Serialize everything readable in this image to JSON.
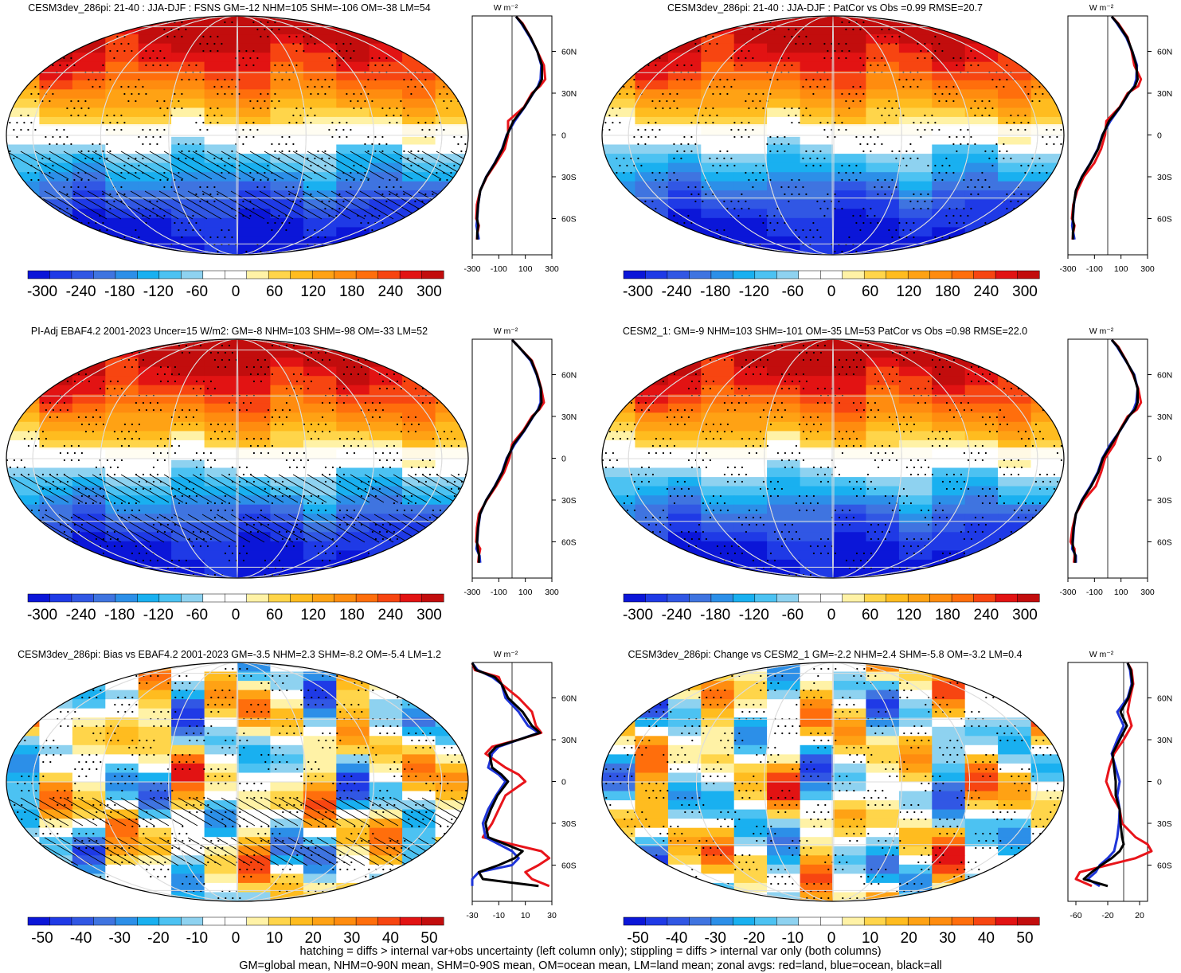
{
  "footer": {
    "line1": "hatching = diffs > internal var+obs uncertainty (left column only); stippling = diffs > internal var only (both columns)",
    "line2": "GM=global mean, NHM=0-90N mean, SHM=0-90S mean, OM=ocean mean, LM=land mean; zonal avgs: red=land, blue=ocean, black=all"
  },
  "units_label": "W m⁻²",
  "lat_ticks": [
    "60N",
    "30N",
    "0",
    "30S",
    "60S"
  ],
  "palette": [
    "#0b16d8",
    "#1f3ae6",
    "#3157e4",
    "#3f74e0",
    "#2c8fe8",
    "#19b0f0",
    "#4cc2f2",
    "#8ed2f0",
    "#ffffff",
    "#ffffff",
    "#fff2a6",
    "#ffd54a",
    "#ffbc1f",
    "#ffa214",
    "#ff8c0f",
    "#ff6e0c",
    "#f74511",
    "#e21313",
    "#c20d0d"
  ],
  "colors": {
    "land": "#e8141a",
    "ocean": "#1e34d8",
    "all": "#000000",
    "missing": "#c8c8c8"
  },
  "chart_data": [
    {
      "type": "heatmap",
      "title": "CESM3dev_286pi: 21-40 : JJA-DJF : FSNS GM=-12 NHM=105 SHM=-106 OM=-38 LM=54",
      "colorbar_labels": [
        "-300",
        "-240",
        "-180",
        "-120",
        "-60",
        "0",
        "60",
        "120",
        "180",
        "240",
        "300"
      ],
      "colorbar_range": [
        -330,
        330
      ],
      "hatching": true,
      "stippling": true,
      "zonal": {
        "xlim": [
          -300,
          300
        ],
        "xticks": [
          "-300",
          "-100",
          "100",
          "300"
        ],
        "xtick_values": [
          -300,
          -100,
          100,
          300
        ],
        "lat": [
          85,
          80,
          70,
          60,
          50,
          40,
          35,
          30,
          20,
          10,
          0,
          -10,
          -20,
          -30,
          -40,
          -50,
          -60,
          -65,
          -70,
          -75
        ],
        "land": [
          30,
          80,
          140,
          190,
          240,
          250,
          210,
          150,
          90,
          -30,
          -30,
          -55,
          -120,
          -190,
          -240,
          -265,
          -270,
          -250,
          -260,
          -265
        ],
        "ocean": [
          30,
          70,
          135,
          190,
          220,
          215,
          195,
          160,
          95,
          20,
          -40,
          -75,
          -130,
          -195,
          -240,
          -255,
          -262,
          -268,
          -260,
          -250
        ],
        "all": [
          30,
          75,
          140,
          190,
          225,
          225,
          200,
          158,
          93,
          10,
          -38,
          -72,
          -128,
          -194,
          -240,
          -256,
          -264,
          -255,
          -262,
          -262
        ]
      }
    },
    {
      "type": "heatmap",
      "title": "CESM3dev_286pi: 21-40 : JJA-DJF : PatCor vs Obs =0.99 RMSE=20.7",
      "colorbar_labels": [
        "-300",
        "-240",
        "-180",
        "-120",
        "-60",
        "0",
        "60",
        "120",
        "180",
        "240",
        "300"
      ],
      "colorbar_range": [
        -330,
        330
      ],
      "hatching": false,
      "stippling": true,
      "zonal": {
        "xlim": [
          -300,
          300
        ],
        "xticks": [
          "-300",
          "-100",
          "100",
          "300"
        ],
        "xtick_values": [
          -300,
          -100,
          100,
          300
        ],
        "lat": [
          85,
          80,
          70,
          60,
          50,
          40,
          35,
          30,
          20,
          10,
          0,
          -10,
          -20,
          -30,
          -40,
          -50,
          -60,
          -65,
          -70,
          -75
        ],
        "land": [
          30,
          80,
          150,
          180,
          200,
          250,
          230,
          150,
          90,
          -10,
          -20,
          -50,
          -100,
          -180,
          -230,
          -260,
          -270,
          -250,
          -260,
          -265
        ],
        "ocean": [
          30,
          70,
          140,
          185,
          220,
          215,
          200,
          160,
          95,
          20,
          -40,
          -75,
          -130,
          -195,
          -240,
          -255,
          -262,
          -268,
          -260,
          -250
        ],
        "all": [
          30,
          75,
          145,
          185,
          215,
          225,
          205,
          158,
          93,
          10,
          -38,
          -72,
          -128,
          -194,
          -240,
          -256,
          -264,
          -255,
          -262,
          -262
        ]
      }
    },
    {
      "type": "heatmap",
      "title": "PI-Adj EBAF4.2 2001-2023 Uncer=15 W/m2: GM=-8 NHM=103 SHM=-98 OM=-33 LM=52",
      "colorbar_labels": [
        "-300",
        "-240",
        "-180",
        "-120",
        "-60",
        "0",
        "60",
        "120",
        "180",
        "240",
        "300"
      ],
      "colorbar_range": [
        -330,
        330
      ],
      "hatching": true,
      "stippling": true,
      "zonal": {
        "xlim": [
          -300,
          300
        ],
        "xticks": [
          "-300",
          "-100",
          "100",
          "300"
        ],
        "xtick_values": [
          -300,
          -100,
          100,
          300
        ],
        "lat": [
          85,
          80,
          70,
          60,
          50,
          40,
          35,
          30,
          20,
          10,
          0,
          -10,
          -20,
          -30,
          -40,
          -50,
          -60,
          -65,
          -70,
          -75
        ],
        "land": [
          0,
          50,
          150,
          190,
          220,
          240,
          205,
          150,
          85,
          0,
          -20,
          -60,
          -120,
          -190,
          -250,
          -265,
          -270,
          -240,
          -250,
          -255
        ],
        "ocean": [
          0,
          50,
          140,
          185,
          215,
          215,
          195,
          160,
          95,
          20,
          -40,
          -75,
          -130,
          -195,
          -240,
          -255,
          -262,
          -268,
          -245,
          -240
        ],
        "all": [
          0,
          50,
          145,
          187,
          217,
          222,
          200,
          158,
          92,
          12,
          -36,
          -72,
          -128,
          -194,
          -242,
          -257,
          -264,
          -258,
          -248,
          -250
        ]
      }
    },
    {
      "type": "heatmap",
      "title": "CESM2_1: GM=-9 NHM=103 SHM=-101 OM=-35 LM=53 PatCor vs Obs =0.98 RMSE=22.0",
      "colorbar_labels": [
        "-300",
        "-240",
        "-180",
        "-120",
        "-60",
        "0",
        "60",
        "120",
        "180",
        "240",
        "300"
      ],
      "colorbar_range": [
        -330,
        330
      ],
      "hatching": false,
      "stippling": true,
      "zonal": {
        "xlim": [
          -300,
          300
        ],
        "xticks": [
          "-300",
          "-100",
          "100",
          "300"
        ],
        "xtick_values": [
          -300,
          -100,
          100,
          300
        ],
        "lat": [
          85,
          80,
          70,
          60,
          50,
          40,
          35,
          30,
          20,
          10,
          0,
          -10,
          -20,
          -30,
          -40,
          -50,
          -60,
          -65,
          -70,
          -75
        ],
        "land": [
          30,
          80,
          140,
          190,
          230,
          250,
          220,
          150,
          90,
          50,
          -20,
          -50,
          -90,
          -180,
          -240,
          -265,
          -280,
          -250,
          -250,
          -255
        ],
        "ocean": [
          30,
          70,
          135,
          200,
          225,
          215,
          195,
          160,
          95,
          20,
          -40,
          -75,
          -130,
          -195,
          -240,
          -255,
          -262,
          -268,
          -240,
          -240
        ],
        "all": [
          30,
          75,
          138,
          195,
          225,
          225,
          205,
          158,
          93,
          28,
          -36,
          -70,
          -125,
          -192,
          -240,
          -257,
          -265,
          -260,
          -244,
          -246
        ]
      }
    },
    {
      "type": "heatmap",
      "title": "CESM3dev_286pi: Bias vs EBAF4.2 2001-2023 GM=-3.5 NHM=2.3 SHM=-8.2 OM=-5.4 LM=1.2",
      "colorbar_labels": [
        "-50",
        "-40",
        "-30",
        "-20",
        "-10",
        "0",
        "10",
        "20",
        "30",
        "40",
        "50"
      ],
      "colorbar_range": [
        -55,
        55
      ],
      "hatching": true,
      "stippling": true,
      "zonal": {
        "xlim": [
          -30,
          30
        ],
        "xticks": [
          "-30",
          "-10",
          "10",
          "30"
        ],
        "xtick_values": [
          -30,
          -10,
          10,
          30
        ],
        "lat": [
          85,
          80,
          75,
          70,
          60,
          50,
          40,
          35,
          30,
          25,
          20,
          10,
          5,
          0,
          -10,
          -20,
          -30,
          -40,
          -45,
          -50,
          -55,
          -60,
          -65,
          -70,
          -75
        ],
        "land": [
          -30,
          -28,
          -10,
          -8,
          5,
          15,
          18,
          22,
          5,
          -15,
          -20,
          -5,
          5,
          10,
          -5,
          -10,
          -15,
          -22,
          0,
          22,
          28,
          20,
          10,
          15,
          28
        ],
        "ocean": [
          -30,
          -26,
          -15,
          -8,
          -5,
          5,
          12,
          20,
          5,
          -10,
          -15,
          -18,
          -10,
          -5,
          -12,
          -18,
          -22,
          -20,
          -10,
          0,
          5,
          0,
          -25,
          -30,
          -30
        ],
        "all": [
          -30,
          -27,
          -13,
          -8,
          -3,
          8,
          15,
          21,
          5,
          -12,
          -17,
          -15,
          -8,
          -3,
          -11,
          -16,
          -20,
          -18,
          -5,
          8,
          2,
          -10,
          -25,
          -22,
          20
        ]
      }
    },
    {
      "type": "heatmap",
      "title": "CESM3dev_286pi: Change vs CESM2_1 GM=-2.2 NHM=2.4 SHM=-5.8 OM=-3.2 LM=0.4",
      "colorbar_labels": [
        "-50",
        "-40",
        "-30",
        "-20",
        "-10",
        "0",
        "10",
        "20",
        "30",
        "40",
        "50"
      ],
      "colorbar_range": [
        -55,
        55
      ],
      "hatching": false,
      "stippling": true,
      "zonal": {
        "xlim": [
          -70,
          30
        ],
        "xticks": [
          "-60",
          "-20",
          "20"
        ],
        "xtick_values": [
          -60,
          -20,
          20
        ],
        "lat": [
          85,
          80,
          70,
          60,
          50,
          40,
          30,
          20,
          10,
          0,
          -10,
          -20,
          -30,
          -40,
          -45,
          -50,
          -55,
          -60,
          -65,
          -70,
          -75
        ],
        "land": [
          5,
          10,
          12,
          8,
          5,
          10,
          0,
          -12,
          -18,
          -22,
          -15,
          -5,
          -2,
          15,
          30,
          35,
          15,
          -20,
          -55,
          -60,
          -40
        ],
        "ocean": [
          5,
          8,
          10,
          5,
          -8,
          0,
          -8,
          -15,
          -10,
          -5,
          -8,
          -5,
          -6,
          -8,
          -10,
          -12,
          -20,
          -30,
          -35,
          -45,
          -30
        ],
        "all": [
          5,
          9,
          11,
          6,
          -4,
          4,
          -5,
          -14,
          -12,
          -10,
          -10,
          -5,
          -4,
          -2,
          0,
          -5,
          -15,
          -28,
          -40,
          -50,
          -20
        ]
      }
    }
  ]
}
